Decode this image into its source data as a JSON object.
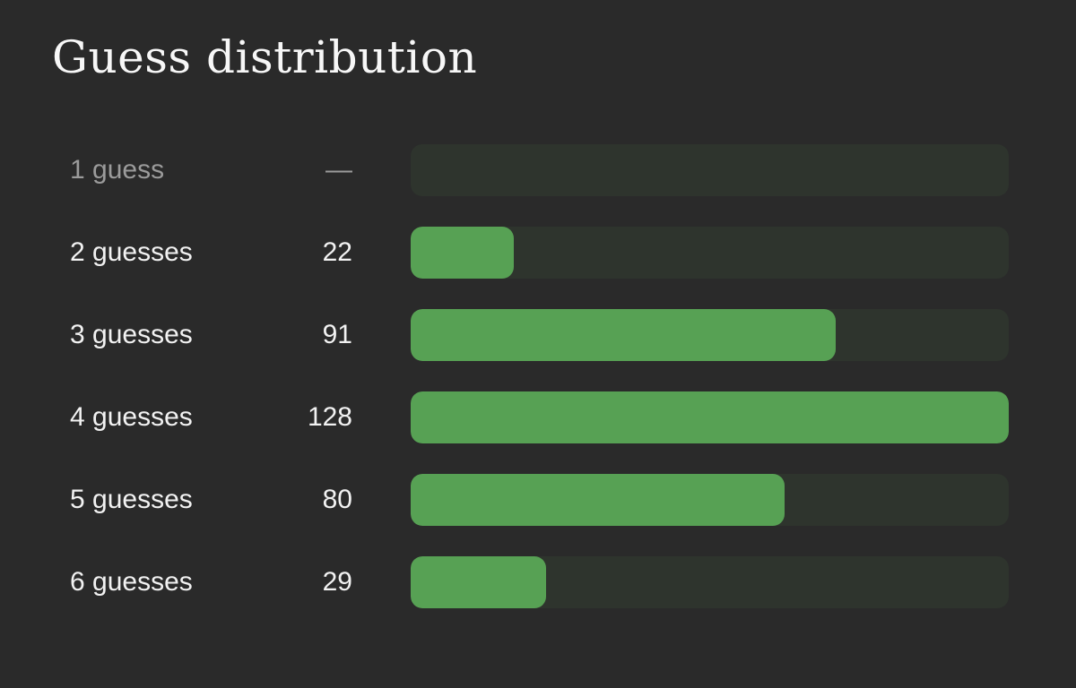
{
  "title": "Guess distribution",
  "colors": {
    "background": "#2a2a2a",
    "track": "#2e342d",
    "fill": "#57a154",
    "text": "#f2f2f2",
    "muted": "#9b9b9b",
    "title": "#f7f7f7"
  },
  "rows": [
    {
      "label": "1 guess",
      "count": "—",
      "value": 0,
      "muted": true
    },
    {
      "label": "2 guesses",
      "count": "22",
      "value": 22,
      "muted": false
    },
    {
      "label": "3 guesses",
      "count": "91",
      "value": 91,
      "muted": false
    },
    {
      "label": "4 guesses",
      "count": "128",
      "value": 128,
      "muted": false
    },
    {
      "label": "5 guesses",
      "count": "80",
      "value": 80,
      "muted": false
    },
    {
      "label": "6 guesses",
      "count": "29",
      "value": 29,
      "muted": false
    }
  ],
  "chart_data": {
    "type": "bar",
    "orientation": "horizontal",
    "title": "Guess distribution",
    "categories": [
      "1 guess",
      "2 guesses",
      "3 guesses",
      "4 guesses",
      "5 guesses",
      "6 guesses"
    ],
    "values": [
      0,
      22,
      91,
      128,
      80,
      29
    ],
    "value_labels": [
      "—",
      "22",
      "91",
      "128",
      "80",
      "29"
    ],
    "xlim": [
      0,
      128
    ],
    "max": 128,
    "bar_color": "#57a154",
    "track_color": "#2e342d",
    "legend": false,
    "grid": false
  }
}
